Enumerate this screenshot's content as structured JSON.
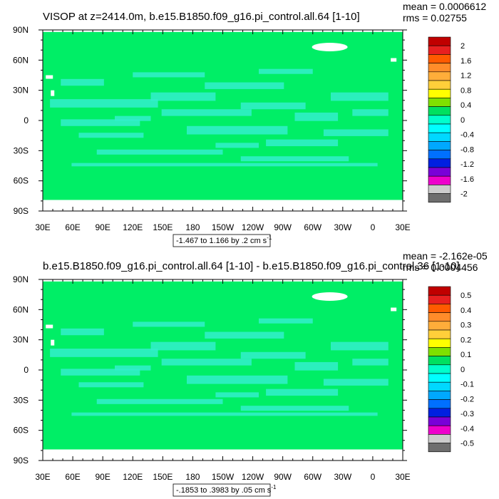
{
  "chart_data": [
    {
      "type": "heatmap",
      "title": "VISOP at z=2414.0m, b.e15.B1850.f09_g16.pi_control.all.64 [1-10]",
      "stats": {
        "mean": "mean = 0.0006612",
        "rms": "rms = 0.02755"
      },
      "x_ticks": [
        "30E",
        "60E",
        "90E",
        "120E",
        "150E",
        "180",
        "150W",
        "120W",
        "90W",
        "60W",
        "30W",
        "0",
        "30E"
      ],
      "y_ticks": [
        "90N",
        "60N",
        "30N",
        "0",
        "30S",
        "60S",
        "90S"
      ],
      "xlim": [
        30,
        390
      ],
      "ylim": [
        -90,
        90
      ],
      "colorbar": {
        "labels": [
          "2",
          "1.6",
          "1.2",
          "0.8",
          "0.4",
          "0",
          "-0.4",
          "-0.8",
          "-1.2",
          "-1.6",
          "-2"
        ],
        "colors": [
          "#c00000",
          "#e82020",
          "#ff5a00",
          "#ff8c2a",
          "#ffad3a",
          "#ffcf3a",
          "#ffff00",
          "#7fe000",
          "#00e060",
          "#00ffcc",
          "#00ffff",
          "#00d8ff",
          "#00a8ff",
          "#0070ff",
          "#0020e0",
          "#7a00d8",
          "#ee00cc",
          "#cccccc",
          "#6e6e6e"
        ]
      },
      "range_label": {
        "text": "-1.467 to 1.166 by .2 cm s",
        "sup": "-1"
      },
      "background_color": "#00ee66",
      "secondary_color": "#33eecc"
    },
    {
      "type": "heatmap",
      "title": "b.e15.B1850.f09_g16.pi_control.all.64 [1-10] - b.e15.B1850.f09_g16.pi_control.36 [1-10]",
      "stats": {
        "mean": "mean = -2.162e-05",
        "rms": "rms = 0.0004456"
      },
      "x_ticks": [
        "30E",
        "60E",
        "90E",
        "120E",
        "150E",
        "180",
        "150W",
        "120W",
        "90W",
        "60W",
        "30W",
        "0",
        "30E"
      ],
      "y_ticks": [
        "90N",
        "60N",
        "30N",
        "0",
        "30S",
        "60S",
        "90S"
      ],
      "xlim": [
        30,
        390
      ],
      "ylim": [
        -90,
        90
      ],
      "colorbar": {
        "labels": [
          "0.5",
          "0.4",
          "0.3",
          "0.2",
          "0.1",
          "0",
          "-0.1",
          "-0.2",
          "-0.3",
          "-0.4",
          "-0.5"
        ],
        "colors": [
          "#c00000",
          "#e82020",
          "#ff5a00",
          "#ff8c2a",
          "#ffad3a",
          "#ffcf3a",
          "#ffff00",
          "#7fe000",
          "#00e060",
          "#00ffcc",
          "#00ffff",
          "#00d8ff",
          "#00a8ff",
          "#0070ff",
          "#0020e0",
          "#7a00d8",
          "#ee00cc",
          "#cccccc",
          "#6e6e6e"
        ]
      },
      "range_label": {
        "text": "-.1853 to .3983 by .05 cm s",
        "sup": "-1"
      },
      "background_color": "#00ee66",
      "secondary_color": "#33eecc"
    }
  ]
}
